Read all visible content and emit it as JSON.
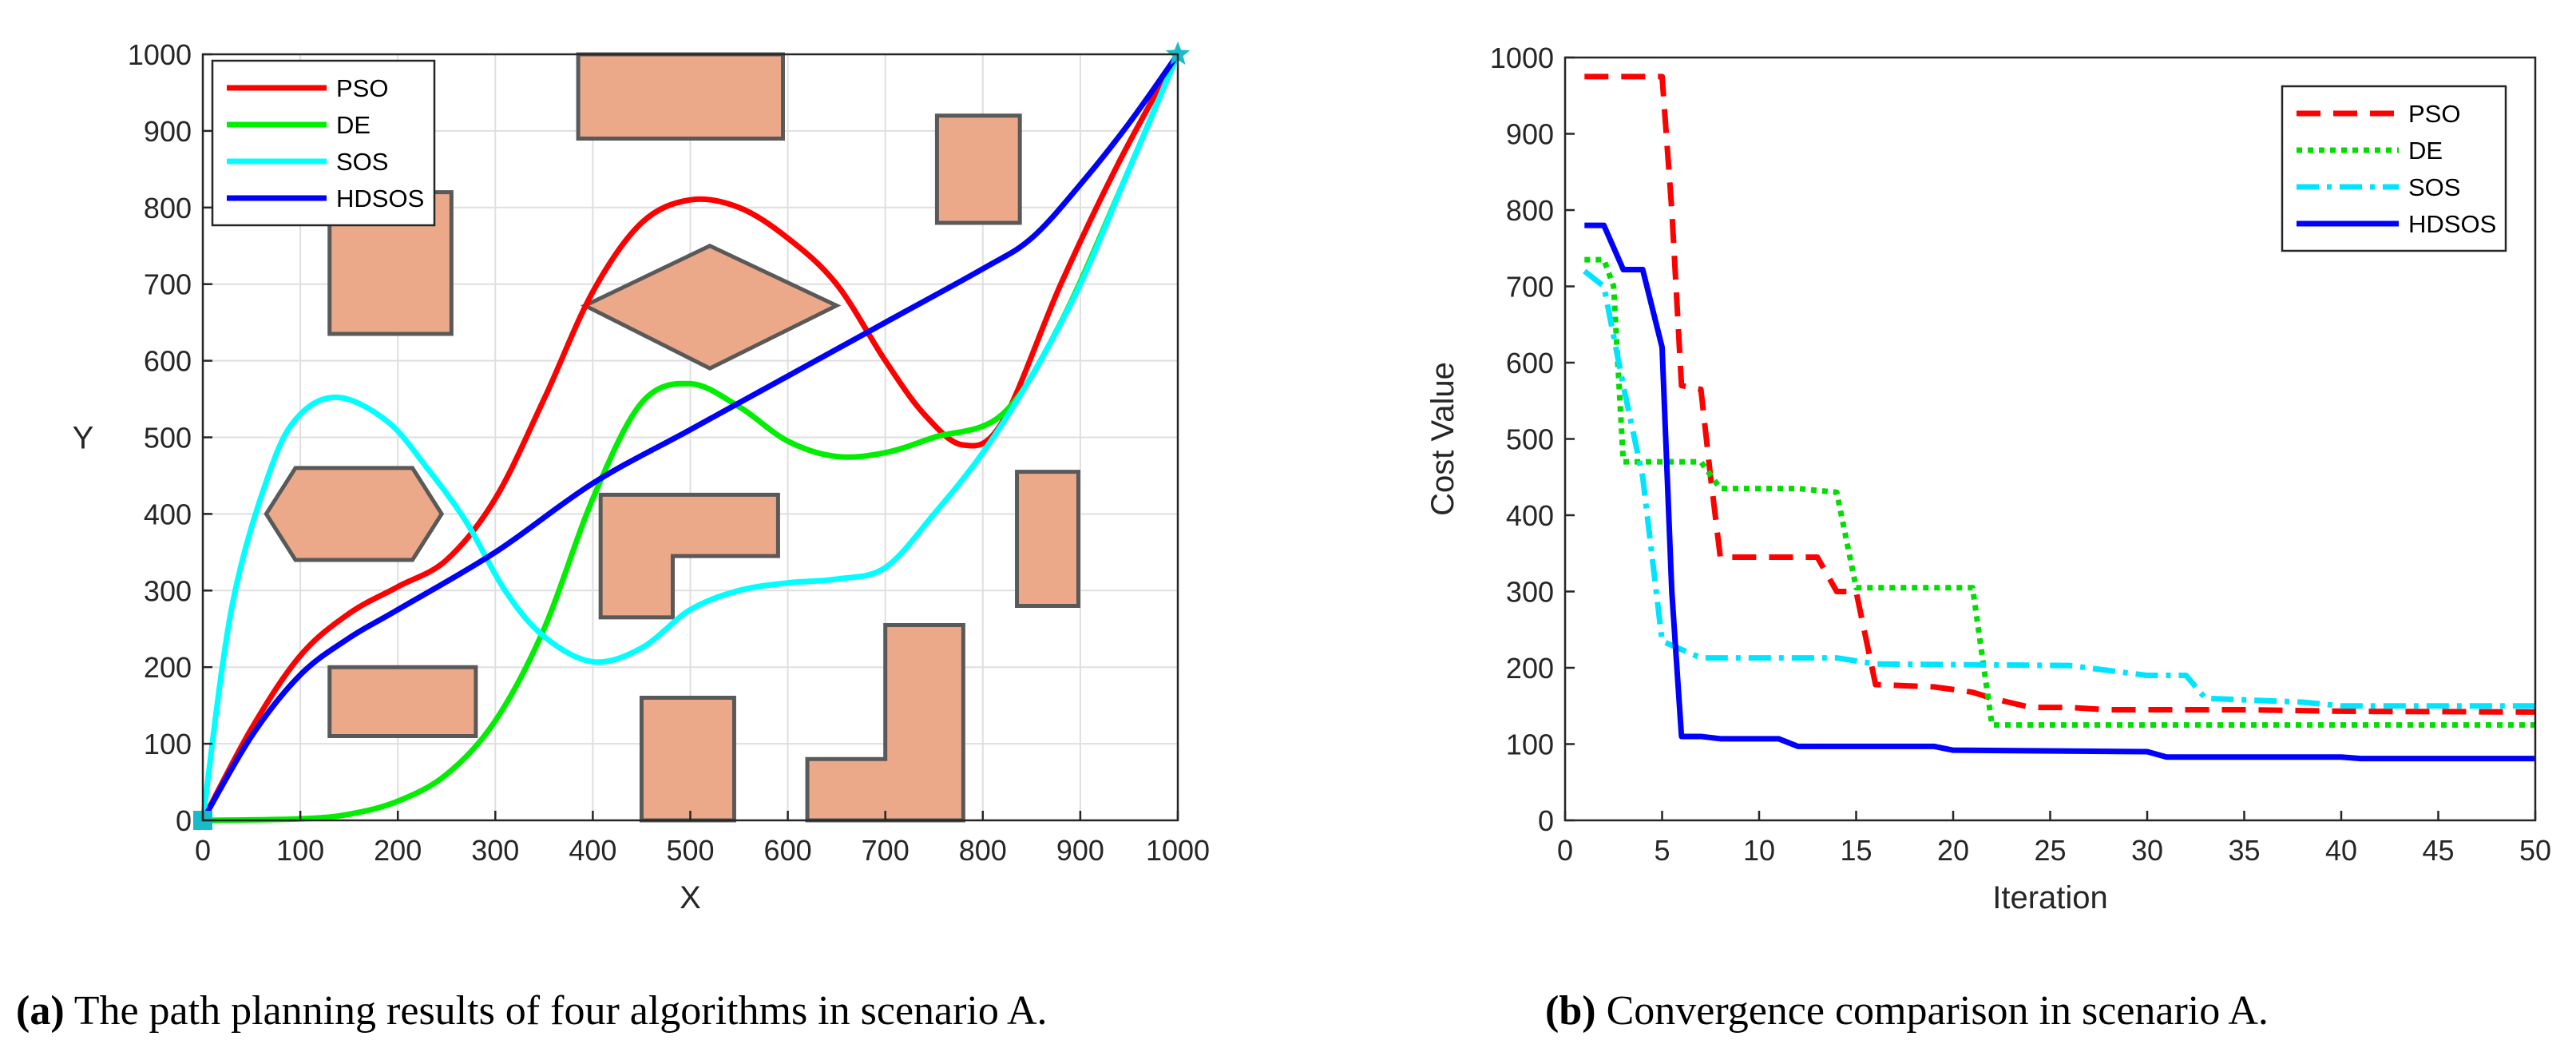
{
  "chart_data": [
    {
      "type": "line",
      "title": "",
      "xlabel": "X",
      "ylabel": "Y",
      "xlim": [
        0,
        1000
      ],
      "ylim": [
        0,
        1000
      ],
      "xticks": [
        0,
        100,
        200,
        300,
        400,
        500,
        600,
        700,
        800,
        900,
        1000
      ],
      "yticks": [
        0,
        100,
        200,
        300,
        400,
        500,
        600,
        700,
        800,
        900,
        1000
      ],
      "grid": true,
      "legend_position": "top-left",
      "start_point": [
        0,
        0
      ],
      "goal_point": [
        1000,
        1000
      ],
      "obstacle_color": "#eba98a",
      "obstacles": [
        {
          "name": "obstacle-rect-top",
          "points": [
            [
              385,
              890
            ],
            [
              595,
              890
            ],
            [
              595,
              1000
            ],
            [
              385,
              1000
            ]
          ]
        },
        {
          "name": "obstacle-rect-topright",
          "points": [
            [
              753,
              780
            ],
            [
              838,
              780
            ],
            [
              838,
              920
            ],
            [
              753,
              920
            ]
          ]
        },
        {
          "name": "obstacle-pentagon-left",
          "points": [
            [
              130,
              635
            ],
            [
              255,
              635
            ],
            [
              255,
              820
            ],
            [
              230,
              820
            ],
            [
              130,
              815
            ]
          ]
        },
        {
          "name": "obstacle-diamond",
          "points": [
            [
              392,
              672
            ],
            [
              520,
              750
            ],
            [
              650,
              672
            ],
            [
              520,
              590
            ]
          ]
        },
        {
          "name": "obstacle-hexagon",
          "points": [
            [
              65,
              400
            ],
            [
              95,
              460
            ],
            [
              215,
              460
            ],
            [
              245,
              400
            ],
            [
              215,
              340
            ],
            [
              95,
              340
            ]
          ]
        },
        {
          "name": "obstacle-l-shape-middle",
          "points": [
            [
              408,
              265
            ],
            [
              482,
              265
            ],
            [
              482,
              345
            ],
            [
              590,
              345
            ],
            [
              590,
              425
            ],
            [
              408,
              425
            ]
          ]
        },
        {
          "name": "obstacle-rect-right",
          "points": [
            [
              835,
              280
            ],
            [
              898,
              280
            ],
            [
              898,
              455
            ],
            [
              835,
              455
            ]
          ]
        },
        {
          "name": "obstacle-rect-lower-left",
          "points": [
            [
              130,
              110
            ],
            [
              280,
              110
            ],
            [
              280,
              200
            ],
            [
              130,
              200
            ]
          ]
        },
        {
          "name": "obstacle-rect-bottom",
          "points": [
            [
              450,
              0
            ],
            [
              545,
              0
            ],
            [
              545,
              160
            ],
            [
              450,
              160
            ]
          ]
        },
        {
          "name": "obstacle-l-shape-bottom",
          "points": [
            [
              620,
              0
            ],
            [
              780,
              0
            ],
            [
              780,
              255
            ],
            [
              700,
              255
            ],
            [
              700,
              80
            ],
            [
              620,
              80
            ]
          ]
        }
      ],
      "series": [
        {
          "name": "PSO",
          "color": "#ff0000",
          "style": "solid",
          "points": [
            [
              0,
              0
            ],
            [
              50,
              120
            ],
            [
              100,
              215
            ],
            [
              150,
              270
            ],
            [
              200,
              305
            ],
            [
              250,
              340
            ],
            [
              300,
              420
            ],
            [
              350,
              550
            ],
            [
              400,
              690
            ],
            [
              450,
              780
            ],
            [
              500,
              810
            ],
            [
              550,
              800
            ],
            [
              600,
              760
            ],
            [
              650,
              700
            ],
            [
              700,
              600
            ],
            [
              740,
              530
            ],
            [
              780,
              490
            ],
            [
              820,
              520
            ],
            [
              880,
              700
            ],
            [
              940,
              860
            ],
            [
              1000,
              1000
            ]
          ]
        },
        {
          "name": "DE",
          "color": "#00ee00",
          "style": "solid",
          "points": [
            [
              0,
              0
            ],
            [
              100,
              2
            ],
            [
              150,
              8
            ],
            [
              200,
              25
            ],
            [
              250,
              60
            ],
            [
              300,
              130
            ],
            [
              350,
              250
            ],
            [
              400,
              420
            ],
            [
              450,
              545
            ],
            [
              500,
              570
            ],
            [
              550,
              540
            ],
            [
              600,
              495
            ],
            [
              650,
              475
            ],
            [
              700,
              480
            ],
            [
              750,
              500
            ],
            [
              820,
              530
            ],
            [
              880,
              650
            ],
            [
              950,
              850
            ],
            [
              1000,
              1000
            ]
          ]
        },
        {
          "name": "SOS",
          "color": "#00ffff",
          "style": "solid",
          "points": [
            [
              0,
              0
            ],
            [
              30,
              280
            ],
            [
              70,
              460
            ],
            [
              100,
              530
            ],
            [
              140,
              552
            ],
            [
              190,
              520
            ],
            [
              230,
              460
            ],
            [
              270,
              390
            ],
            [
              310,
              300
            ],
            [
              350,
              240
            ],
            [
              400,
              207
            ],
            [
              450,
              225
            ],
            [
              500,
              275
            ],
            [
              550,
              300
            ],
            [
              600,
              310
            ],
            [
              650,
              315
            ],
            [
              700,
              330
            ],
            [
              750,
              400
            ],
            [
              800,
              480
            ],
            [
              850,
              580
            ],
            [
              900,
              700
            ],
            [
              950,
              850
            ],
            [
              1000,
              1000
            ]
          ]
        },
        {
          "name": "HDSOS",
          "color": "#0000ff",
          "style": "solid",
          "points": [
            [
              0,
              0
            ],
            [
              50,
              110
            ],
            [
              100,
              190
            ],
            [
              150,
              238
            ],
            [
              200,
              275
            ],
            [
              300,
              350
            ],
            [
              400,
              440
            ],
            [
              500,
              510
            ],
            [
              600,
              580
            ],
            [
              700,
              650
            ],
            [
              800,
              720
            ],
            [
              850,
              760
            ],
            [
              900,
              830
            ],
            [
              950,
              910
            ],
            [
              1000,
              1000
            ]
          ]
        }
      ]
    },
    {
      "type": "line",
      "title": "",
      "xlabel": "Iteration",
      "ylabel": "Cost Value",
      "xlim": [
        0,
        50
      ],
      "ylim": [
        0,
        1000
      ],
      "xticks": [
        0,
        5,
        10,
        15,
        20,
        25,
        30,
        35,
        40,
        45,
        50
      ],
      "yticks": [
        0,
        100,
        200,
        300,
        400,
        500,
        600,
        700,
        800,
        900,
        1000
      ],
      "grid": false,
      "legend_position": "top-right",
      "series": [
        {
          "name": "PSO",
          "color": "#ff0000",
          "style": "dashed",
          "points": [
            [
              1,
              975
            ],
            [
              5,
              975
            ],
            [
              5.5,
              800
            ],
            [
              6,
              570
            ],
            [
              7,
              565
            ],
            [
              7.5,
              450
            ],
            [
              8,
              345
            ],
            [
              13,
              345
            ],
            [
              14,
              300
            ],
            [
              15,
              300
            ],
            [
              16,
              178
            ],
            [
              19,
              175
            ],
            [
              21,
              168
            ],
            [
              22,
              160
            ],
            [
              24,
              148
            ],
            [
              26,
              148
            ],
            [
              28,
              145
            ],
            [
              35,
              145
            ],
            [
              40,
              143
            ],
            [
              50,
              142
            ]
          ]
        },
        {
          "name": "DE",
          "color": "#00dd00",
          "style": "dotted",
          "points": [
            [
              1,
              735
            ],
            [
              2,
              735
            ],
            [
              2.5,
              700
            ],
            [
              3,
              470
            ],
            [
              7,
              470
            ],
            [
              8,
              435
            ],
            [
              12,
              435
            ],
            [
              14,
              430
            ],
            [
              15,
              305
            ],
            [
              21,
              305
            ],
            [
              22,
              125
            ],
            [
              50,
              125
            ]
          ]
        },
        {
          "name": "SOS",
          "color": "#00e5ff",
          "style": "dash-dot",
          "points": [
            [
              1,
              720
            ],
            [
              2,
              700
            ],
            [
              3,
              570
            ],
            [
              4,
              450
            ],
            [
              5,
              235
            ],
            [
              7,
              213
            ],
            [
              14,
              213
            ],
            [
              16,
              205
            ],
            [
              26,
              203
            ],
            [
              30,
              190
            ],
            [
              32,
              190
            ],
            [
              33,
              160
            ],
            [
              38,
              155
            ],
            [
              40,
              150
            ],
            [
              50,
              150
            ]
          ]
        },
        {
          "name": "HDSOS",
          "color": "#0000ff",
          "style": "solid",
          "points": [
            [
              1,
              780
            ],
            [
              2,
              780
            ],
            [
              3,
              722
            ],
            [
              4,
              722
            ],
            [
              5,
              620
            ],
            [
              5.5,
              300
            ],
            [
              6,
              110
            ],
            [
              7,
              110
            ],
            [
              8,
              107
            ],
            [
              11,
              107
            ],
            [
              12,
              97
            ],
            [
              19,
              97
            ],
            [
              20,
              92
            ],
            [
              30,
              90
            ],
            [
              31,
              83
            ],
            [
              40,
              83
            ],
            [
              41,
              81
            ],
            [
              50,
              81
            ]
          ]
        }
      ]
    }
  ],
  "captions": [
    {
      "label": "(a)",
      "text": " The path planning results of four algorithms in scenario A."
    },
    {
      "label": "(b)",
      "text": " Convergence comparison in scenario A."
    }
  ],
  "colors": {
    "axis": "#262626",
    "grid": "#dfdfdf",
    "obstacle_fill": "#eba98a",
    "obstacle_stroke": "#595959",
    "marker": "#17bcc8"
  }
}
